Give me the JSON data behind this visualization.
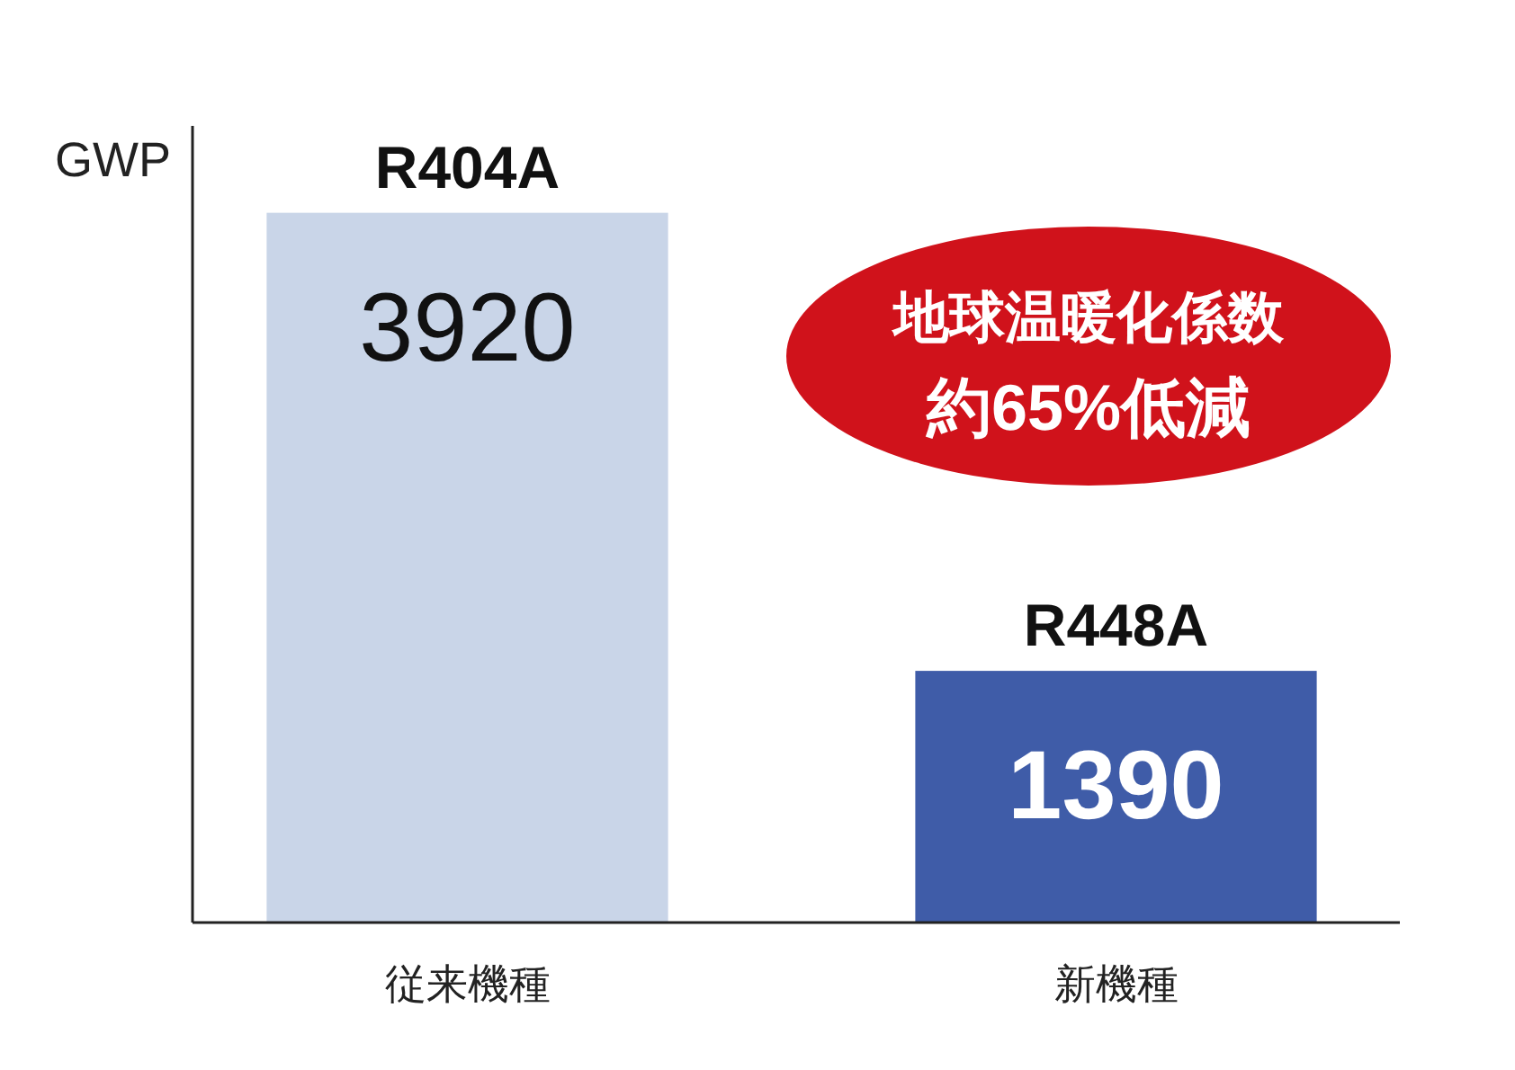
{
  "chart_data": {
    "type": "bar",
    "ylabel": "GWP",
    "categories": [
      "従来機種",
      "新機種"
    ],
    "values": [
      3920,
      1390
    ],
    "colors": [
      "#c9d5e8",
      "#3f5ca8"
    ],
    "ylim": [
      0,
      4400
    ],
    "data_labels": true,
    "tick_labels": "x",
    "annotations": [
      {
        "text": "R404A",
        "x": "従来機種",
        "y": 3920
      },
      {
        "text": "R448A",
        "x": "新機種",
        "y": 1390
      },
      "地球温暖化係数",
      "約65%低減"
    ]
  }
}
